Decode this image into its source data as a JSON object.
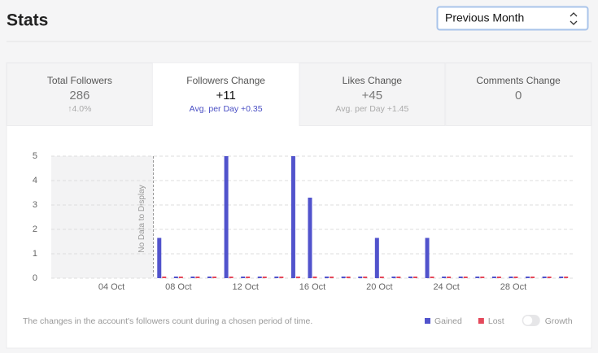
{
  "header": {
    "title": "Stats",
    "period_select": "Previous Month"
  },
  "tabs": [
    {
      "label": "Total Followers",
      "value": "286",
      "sub": "↑4.0%"
    },
    {
      "label": "Followers Change",
      "value": "+11",
      "sub": "Avg. per Day +0.35"
    },
    {
      "label": "Likes Change",
      "value": "+45",
      "sub": "Avg. per Day +1.45"
    },
    {
      "label": "Comments Change",
      "value": "0"
    }
  ],
  "chart_data": {
    "type": "bar",
    "categories": [
      null,
      null,
      null,
      "04 Oct",
      null,
      null,
      null,
      "08 Oct",
      null,
      null,
      null,
      "12 Oct",
      null,
      null,
      null,
      "16 Oct",
      null,
      null,
      null,
      "20 Oct",
      null,
      null,
      null,
      "24 Oct",
      null,
      null,
      null,
      "28 Oct",
      null,
      null,
      null
    ],
    "series": [
      {
        "name": "Gained",
        "color": "#5153cc",
        "values": [
          null,
          null,
          null,
          null,
          null,
          null,
          1.65,
          0,
          0,
          0,
          5,
          0,
          0,
          0,
          5,
          3.3,
          0,
          0,
          0,
          1.65,
          0,
          0,
          1.65,
          0,
          0,
          0,
          0,
          0,
          0,
          0,
          0
        ]
      },
      {
        "name": "Lost",
        "color": "#e4495b",
        "values": [
          null,
          null,
          null,
          null,
          null,
          null,
          0,
          0,
          0,
          0,
          0,
          0,
          0,
          0,
          0,
          0,
          0,
          0,
          0,
          0,
          0,
          0,
          0,
          0,
          0,
          0,
          0,
          0,
          0,
          0,
          0
        ]
      }
    ],
    "ylim": [
      0,
      5
    ],
    "yticks": [
      0,
      1,
      2,
      3,
      4,
      5
    ],
    "grid": true,
    "no_data_label": "No Data to Display",
    "caption": "The changes in the account's followers count during a chosen period of time.",
    "toggle_label": "Growth"
  }
}
